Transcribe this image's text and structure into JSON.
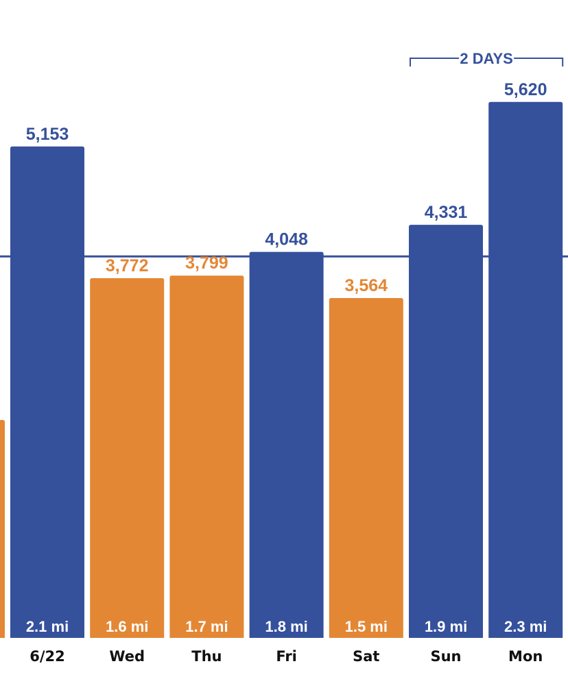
{
  "colors": {
    "above_goal": "#35519c",
    "below_goal": "#e38735",
    "goal_line": "#35519c",
    "label_dark": "#111111"
  },
  "chart_data": {
    "type": "bar",
    "categories": [
      "6/22",
      "Wed",
      "Thu",
      "Fri",
      "Sat",
      "Sun",
      "Mon"
    ],
    "values": [
      5153,
      3772,
      3799,
      4048,
      3564,
      4331,
      5620
    ],
    "value_labels": [
      "5,153",
      "3,772",
      "3,799",
      "4,048",
      "3,564",
      "4,331",
      "5,620"
    ],
    "distances": [
      "2.1 mi",
      "1.6 mi",
      "1.7 mi",
      "1.8 mi",
      "1.5 mi",
      "1.9 mi",
      "2.3 mi"
    ],
    "status": [
      "above",
      "below",
      "below",
      "above",
      "below",
      "above",
      "above"
    ],
    "partial_left_bar": {
      "status": "below"
    },
    "goal_line": 4000,
    "ylim": [
      0,
      6150
    ],
    "annotation": {
      "text": "2 DAYS",
      "spans_categories": [
        "Sun",
        "Mon"
      ]
    },
    "grid": false,
    "legend": "none"
  }
}
